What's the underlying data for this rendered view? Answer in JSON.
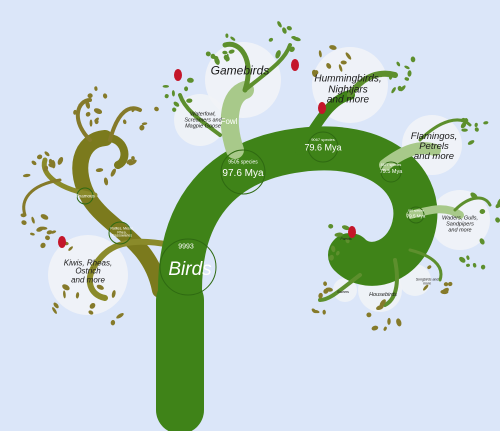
{
  "colors": {
    "background": "#dbe6f9",
    "trunk": "#3f8318",
    "trunk_light": "#a8c98a",
    "branch_olive": "#7b7a1d",
    "leaf_olive": "#857a2a",
    "leaf_green": "#5d8f2d",
    "bubble": "#f1f3f7",
    "accent_red": "#c4162a"
  },
  "root": {
    "label": "Birds",
    "species_count": "9993"
  },
  "nodes": {
    "main": {
      "species": "9505 species",
      "age": "97.6 Mya"
    },
    "upper": {
      "species": "9067 species",
      "age": "79.6 Mya"
    },
    "right1": {
      "species": "8877 species",
      "age": "79.5 Mya"
    },
    "right2": {
      "species": "850 species",
      "age": "79.5 Mya"
    }
  },
  "small_labels": {
    "fowl": "Fowl",
    "palaeognathae_1": "Tinamous",
    "palaeognathae_2": "Ratites, Mesor, Rhea, Cassowaries"
  },
  "groups": {
    "gamebirds": "Gamebirds",
    "waterfowl": "Waterfowl,\nScreamers and\nMagpie Goose",
    "hummingbirds": "Hummingbirds,\nNightjars\nand more",
    "flamingos": "Flamingos,\nPetrels\nand more",
    "waders": "Waders, Gulls,\nSandpipers\nand more",
    "kiwis": "Kiwis, Rheas,\nOstrich\nand more",
    "housebirds": "Housebirds",
    "swans": "Swans",
    "parrots": "Parrots",
    "songbirds": "Songbirds and\nmore"
  }
}
